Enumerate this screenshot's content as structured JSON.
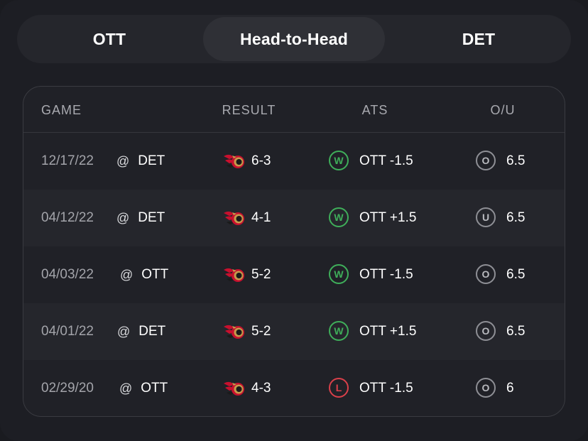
{
  "tabs": {
    "left": "OTT",
    "middle": "Head-to-Head",
    "right": "DET",
    "active": "middle"
  },
  "table": {
    "headers": {
      "game": "GAME",
      "result": "RESULT",
      "ats": "ATS",
      "ou": "O/U"
    },
    "rows": [
      {
        "date": "12/17/22",
        "at": "@",
        "opponent": "DET",
        "logo": "senators-logo",
        "score": "6-3",
        "ats_result": "W",
        "ats_line": "OTT -1.5",
        "ou_result": "O",
        "ou_line": "6.5"
      },
      {
        "date": "04/12/22",
        "at": "@",
        "opponent": "DET",
        "logo": "senators-logo",
        "score": "4-1",
        "ats_result": "W",
        "ats_line": "OTT +1.5",
        "ou_result": "U",
        "ou_line": "6.5"
      },
      {
        "date": "04/03/22",
        "at": "@",
        "opponent": "OTT",
        "logo": "senators-logo",
        "score": "5-2",
        "ats_result": "W",
        "ats_line": "OTT -1.5",
        "ou_result": "O",
        "ou_line": "6.5"
      },
      {
        "date": "04/01/22",
        "at": "@",
        "opponent": "DET",
        "logo": "senators-logo",
        "score": "5-2",
        "ats_result": "W",
        "ats_line": "OTT +1.5",
        "ou_result": "O",
        "ou_line": "6.5"
      },
      {
        "date": "02/29/20",
        "at": "@",
        "opponent": "OTT",
        "logo": "senators-logo",
        "score": "4-3",
        "ats_result": "L",
        "ats_line": "OTT -1.5",
        "ou_result": "O",
        "ou_line": "6"
      }
    ]
  },
  "colors": {
    "win": "#3fae5a",
    "loss": "#d9404a",
    "neutral": "#8e8f95"
  }
}
